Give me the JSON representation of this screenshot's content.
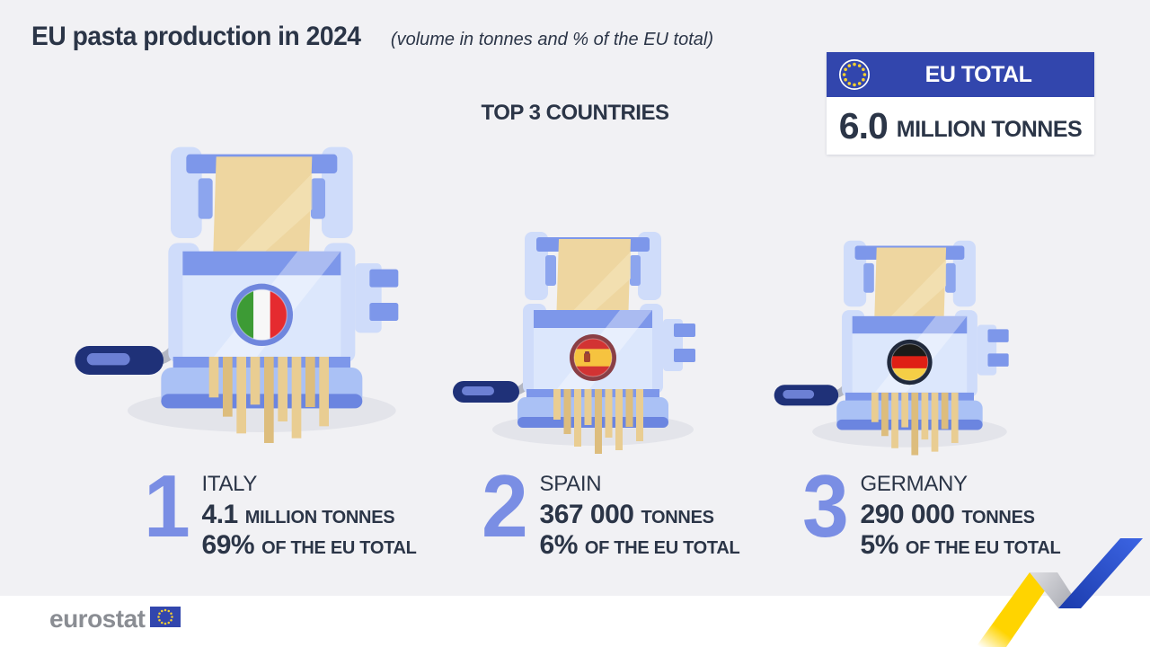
{
  "title": {
    "main": "EU pasta production in 2024",
    "subtitle": "(volume in tonnes and % of the EU total)"
  },
  "section_heading": "TOP 3 COUNTRIES",
  "eu_total": {
    "label": "EU TOTAL",
    "value": "6.0",
    "unit": "MILLION TONNES"
  },
  "countries": [
    {
      "rank": "1",
      "name": "ITALY",
      "volume_value": "4.1",
      "volume_unit": "MILLION TONNES",
      "share_value": "69%",
      "share_unit": "OF THE EU TOTAL",
      "flag": "italy"
    },
    {
      "rank": "2",
      "name": "SPAIN",
      "volume_value": "367 000",
      "volume_unit": "TONNES",
      "share_value": "6%",
      "share_unit": "OF THE EU TOTAL",
      "flag": "spain"
    },
    {
      "rank": "3",
      "name": "GERMANY",
      "volume_value": "290 000",
      "volume_unit": "TONNES",
      "share_value": "5%",
      "share_unit": "OF THE EU TOTAL",
      "flag": "germany"
    }
  ],
  "logo": {
    "text": "eurostat"
  },
  "flags": {
    "italy": {
      "type": "vertical",
      "stripes": [
        "#3d9b35",
        "#f7f7f7",
        "#e52b2f"
      ],
      "ratios": [
        0.334,
        0.333,
        0.333
      ],
      "ring": "#6f86dd",
      "emblem": false
    },
    "spain": {
      "type": "horizontal",
      "stripes": [
        "#d23333",
        "#f6c33f",
        "#d23333"
      ],
      "ratios": [
        0.27,
        0.46,
        0.27
      ],
      "ring": "#8a3f45",
      "emblem": true
    },
    "germany": {
      "type": "horizontal",
      "stripes": [
        "#1b1b19",
        "#df2015",
        "#f5ce46"
      ],
      "ratios": [
        0.334,
        0.333,
        0.333
      ],
      "ring": "#20293c",
      "emblem": false
    }
  },
  "colors": {
    "background": "#f1f1f4",
    "ink": "#2b3547",
    "accent_number": "#7a8ee4",
    "eu_blue": "#3246ad",
    "star_yellow": "#f8d12e",
    "logo_gray": "#8a8d93",
    "machine": {
      "pale": "#cfdcfa",
      "light": "#dce7fc",
      "mid": "#7d97ea",
      "tab": "#8ca5ee",
      "base": "#aac1f5",
      "base_dark": "#6b85e0",
      "dough": "#eed6a0",
      "dough_light": "#f4e2b6",
      "strand": "#e9cd92",
      "strand_dark": "#ddbd7d",
      "shadow": "#e3e4ea",
      "crank": "#b2b6c2",
      "handle": "#1f3178",
      "handle_hl": "#7a8ee4"
    },
    "ribbon": {
      "yellow": "#ffd400",
      "gray_light": "#dcdce0",
      "gray_dark": "#a4a6ae",
      "blue_light": "#3a62e0",
      "blue_dark": "#1d3eb0"
    }
  },
  "chart_data": {
    "type": "bar",
    "title": "EU pasta production in 2024",
    "subtitle": "(volume in tonnes and % of the EU total)",
    "annotation": "TOP 3 COUNTRIES",
    "categories": [
      "Italy",
      "Spain",
      "Germany"
    ],
    "series": [
      {
        "name": "Production volume (tonnes)",
        "values": [
          4100000,
          367000,
          290000
        ]
      },
      {
        "name": "Share of EU total (%)",
        "values": [
          69,
          6,
          5
        ]
      }
    ],
    "value_labels": [
      "4.1 MILLION TONNES / 69% OF THE EU TOTAL",
      "367 000 TONNES / 6% OF THE EU TOTAL",
      "290 000 TONNES / 5% OF THE EU TOTAL"
    ],
    "eu_total": {
      "label": "EU TOTAL",
      "tonnes": 6000000,
      "display": "6.0 MILLION TONNES"
    },
    "legend_position": "none",
    "grid": false
  }
}
